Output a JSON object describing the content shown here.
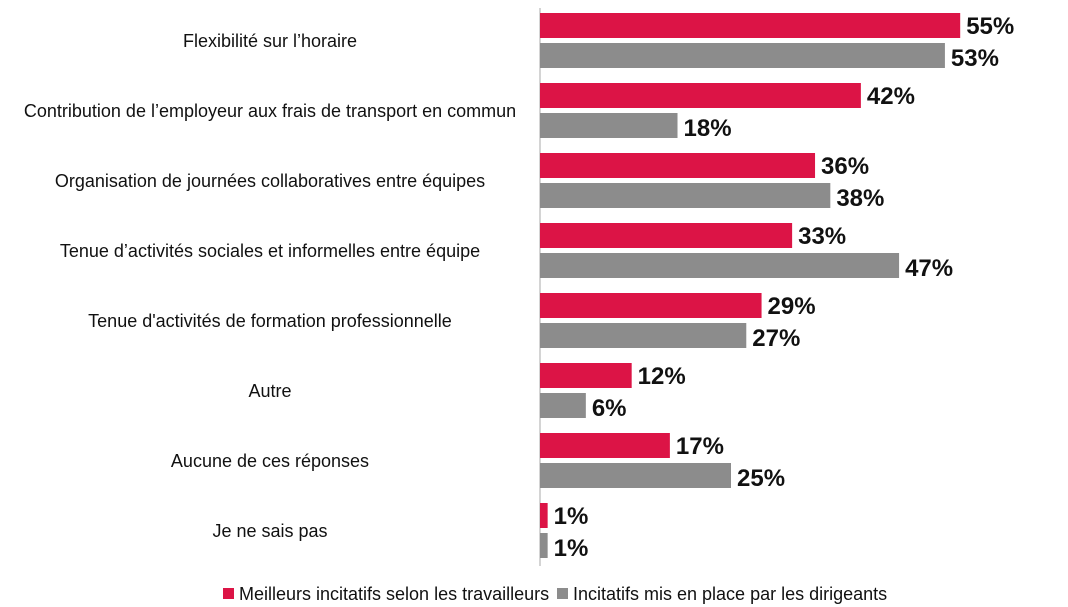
{
  "chart_data": {
    "type": "bar",
    "orientation": "horizontal",
    "categories": [
      "Flexibilité sur l’horaire",
      "Contribution de l’employeur aux frais de transport en commun",
      "Organisation de journées collaboratives entre équipes",
      "Tenue d’activités sociales et informelles entre équipe",
      "Tenue d'activités de formation professionnelle",
      "Autre",
      "Aucune de ces réponses",
      "Je ne sais pas"
    ],
    "series": [
      {
        "name": "Meilleurs incitatifs selon les travailleurs",
        "color": "#dc1446",
        "values": [
          55,
          42,
          36,
          33,
          29,
          12,
          17,
          1
        ],
        "value_labels": [
          "55%",
          "42%",
          "36%",
          "33%",
          "29%",
          "12%",
          "17%",
          "1%"
        ]
      },
      {
        "name": "Incitatifs mis en place par les dirigeants",
        "color": "#8c8c8c",
        "values": [
          53,
          18,
          38,
          47,
          27,
          6,
          25,
          1
        ],
        "value_labels": [
          "53%",
          "18%",
          "38%",
          "47%",
          "27%",
          "6%",
          "25%",
          "1%"
        ]
      }
    ],
    "legend": "bottom"
  }
}
